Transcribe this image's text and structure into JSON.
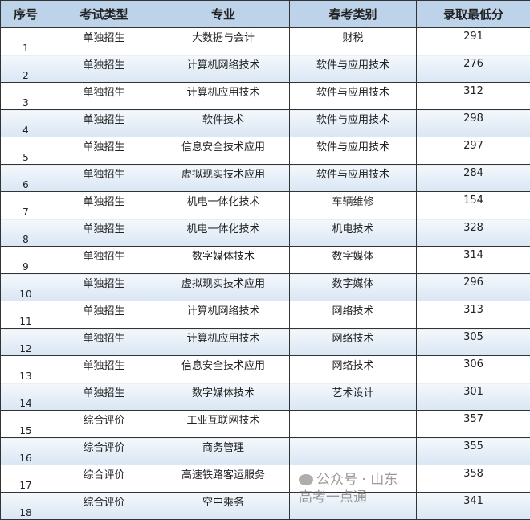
{
  "headers": [
    "序号",
    "考试类型",
    "专业",
    "春考类别",
    "录取最低分"
  ],
  "rows": [
    [
      "1",
      "单独招生",
      "大数据与会计",
      "财税",
      "291"
    ],
    [
      "2",
      "单独招生",
      "计算机网络技术",
      "软件与应用技术",
      "276"
    ],
    [
      "3",
      "单独招生",
      "计算机应用技术",
      "软件与应用技术",
      "312"
    ],
    [
      "4",
      "单独招生",
      "软件技术",
      "软件与应用技术",
      "298"
    ],
    [
      "5",
      "单独招生",
      "信息安全技术应用",
      "软件与应用技术",
      "297"
    ],
    [
      "6",
      "单独招生",
      "虚拟现实技术应用",
      "软件与应用技术",
      "284"
    ],
    [
      "7",
      "单独招生",
      "机电一体化技术",
      "车辆维修",
      "154"
    ],
    [
      "8",
      "单独招生",
      "机电一体化技术",
      "机电技术",
      "328"
    ],
    [
      "9",
      "单独招生",
      "数字媒体技术",
      "数字媒体",
      "314"
    ],
    [
      "10",
      "单独招生",
      "虚拟现实技术应用",
      "数字媒体",
      "296"
    ],
    [
      "11",
      "单独招生",
      "计算机网络技术",
      "网络技术",
      "313"
    ],
    [
      "12",
      "单独招生",
      "计算机应用技术",
      "网络技术",
      "305"
    ],
    [
      "13",
      "单独招生",
      "信息安全技术应用",
      "网络技术",
      "306"
    ],
    [
      "14",
      "单独招生",
      "数字媒体技术",
      "艺术设计",
      "301"
    ],
    [
      "15",
      "综合评价",
      "工业互联网技术",
      "",
      "357"
    ],
    [
      "16",
      "综合评价",
      "商务管理",
      "",
      "355"
    ],
    [
      "17",
      "综合评价",
      "高速铁路客运服务",
      "",
      "358"
    ],
    [
      "18",
      "综合评价",
      "空中乘务",
      "",
      "341"
    ]
  ],
  "watermark": "公众号 · 山东高考一点通",
  "colors": {
    "header_bg": "#bcd3ea",
    "alt_row_bg": "#dfeaf6",
    "border": "#333333"
  }
}
